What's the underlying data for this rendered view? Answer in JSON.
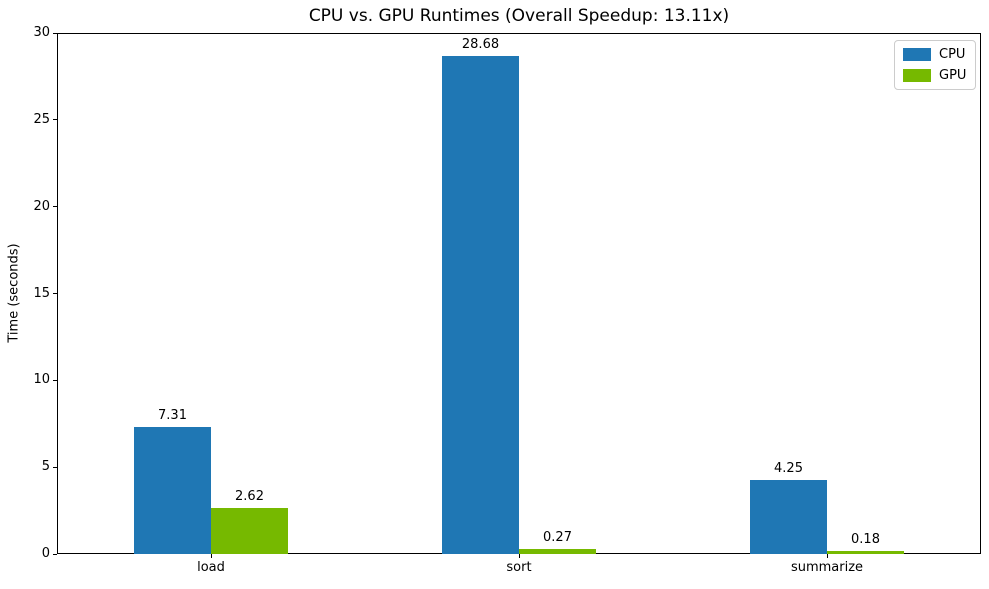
{
  "chart_data": {
    "type": "bar",
    "title": "CPU vs. GPU Runtimes (Overall Speedup: 13.11x)",
    "xlabel": "",
    "ylabel": "Time (seconds)",
    "categories": [
      "load",
      "sort",
      "summarize"
    ],
    "series": [
      {
        "name": "CPU",
        "color": "#1f77b4",
        "values": [
          7.31,
          28.68,
          4.25
        ]
      },
      {
        "name": "GPU",
        "color": "#76b900",
        "values": [
          2.62,
          0.27,
          0.18
        ]
      }
    ],
    "bar_value_labels": [
      [
        "7.31",
        "28.68",
        "4.25"
      ],
      [
        "2.62",
        "0.27",
        "0.18"
      ]
    ],
    "ylim": [
      0,
      30
    ],
    "yticks": [
      0,
      5,
      10,
      15,
      20,
      25,
      30
    ],
    "grid": false,
    "legend_position": "upper right",
    "axis_color": "#000000",
    "legend_border_color": "#cccccc"
  }
}
